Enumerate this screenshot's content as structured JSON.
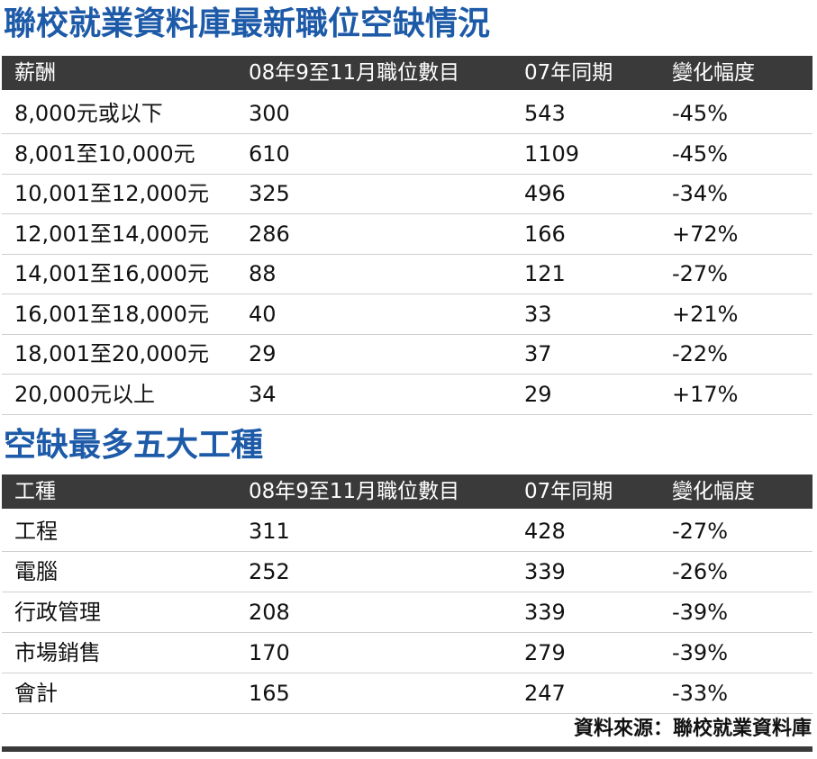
{
  "salary_section": {
    "title": "聯校就業資料庫最新職位空缺情況",
    "headers": [
      "薪酬",
      "08年9至11月職位數目",
      "07年同期",
      "變化幅度"
    ],
    "rows": [
      [
        "8,000元或以下",
        "300",
        "543",
        "-45%"
      ],
      [
        "8,001至10,000元",
        "610",
        "1109",
        "-45%"
      ],
      [
        "10,001至12,000元",
        "325",
        "496",
        "-34%"
      ],
      [
        "12,001至14,000元",
        "286",
        "166",
        "+72%"
      ],
      [
        "14,001至16,000元",
        "88",
        "121",
        "-27%"
      ],
      [
        "16,001至18,000元",
        "40",
        "33",
        "+21%"
      ],
      [
        "18,001至20,000元",
        "29",
        "37",
        "-22%"
      ],
      [
        "20,000元以上",
        "34",
        "29",
        "+17%"
      ]
    ]
  },
  "trade_section": {
    "title": "空缺最多五大工種",
    "headers": [
      "工種",
      "08年9至11月職位數目",
      "07年同期",
      "變化幅度"
    ],
    "rows": [
      [
        "工程",
        "311",
        "428",
        "-27%"
      ],
      [
        "電腦",
        "252",
        "339",
        "-26%"
      ],
      [
        "行政管理",
        "208",
        "339",
        "-39%"
      ],
      [
        "市場銷售",
        "170",
        "279",
        "-39%"
      ],
      [
        "會計",
        "165",
        "247",
        "-33%"
      ]
    ]
  },
  "source": "資料來源：聯校就業資料庫",
  "colors": {
    "title": "#1d5aa8",
    "header_bg": "#3a3a3a",
    "header_text": "#ffffff"
  }
}
